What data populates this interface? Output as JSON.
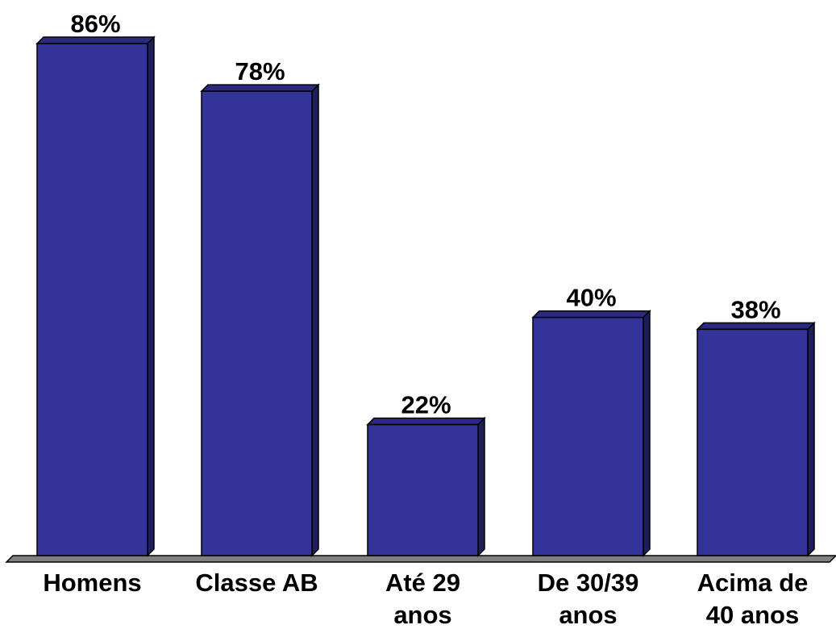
{
  "chart_data": {
    "type": "bar",
    "categories": [
      [
        "Homens"
      ],
      [
        "Classe AB"
      ],
      [
        "Até 29",
        "anos"
      ],
      [
        "De 30/39",
        "anos"
      ],
      [
        "Acima de",
        "40 anos"
      ]
    ],
    "values": [
      86,
      78,
      22,
      40,
      38
    ],
    "value_labels": [
      "86%",
      "78%",
      "22%",
      "40%",
      "38%"
    ],
    "ylim": [
      0,
      86
    ],
    "grid": false,
    "legend": "none",
    "colors": {
      "bar_front": "#333399",
      "bar_side": "#1e1e5c",
      "bar_top": "#2a2a80",
      "floor": "#808080",
      "outline": "#000000"
    }
  }
}
